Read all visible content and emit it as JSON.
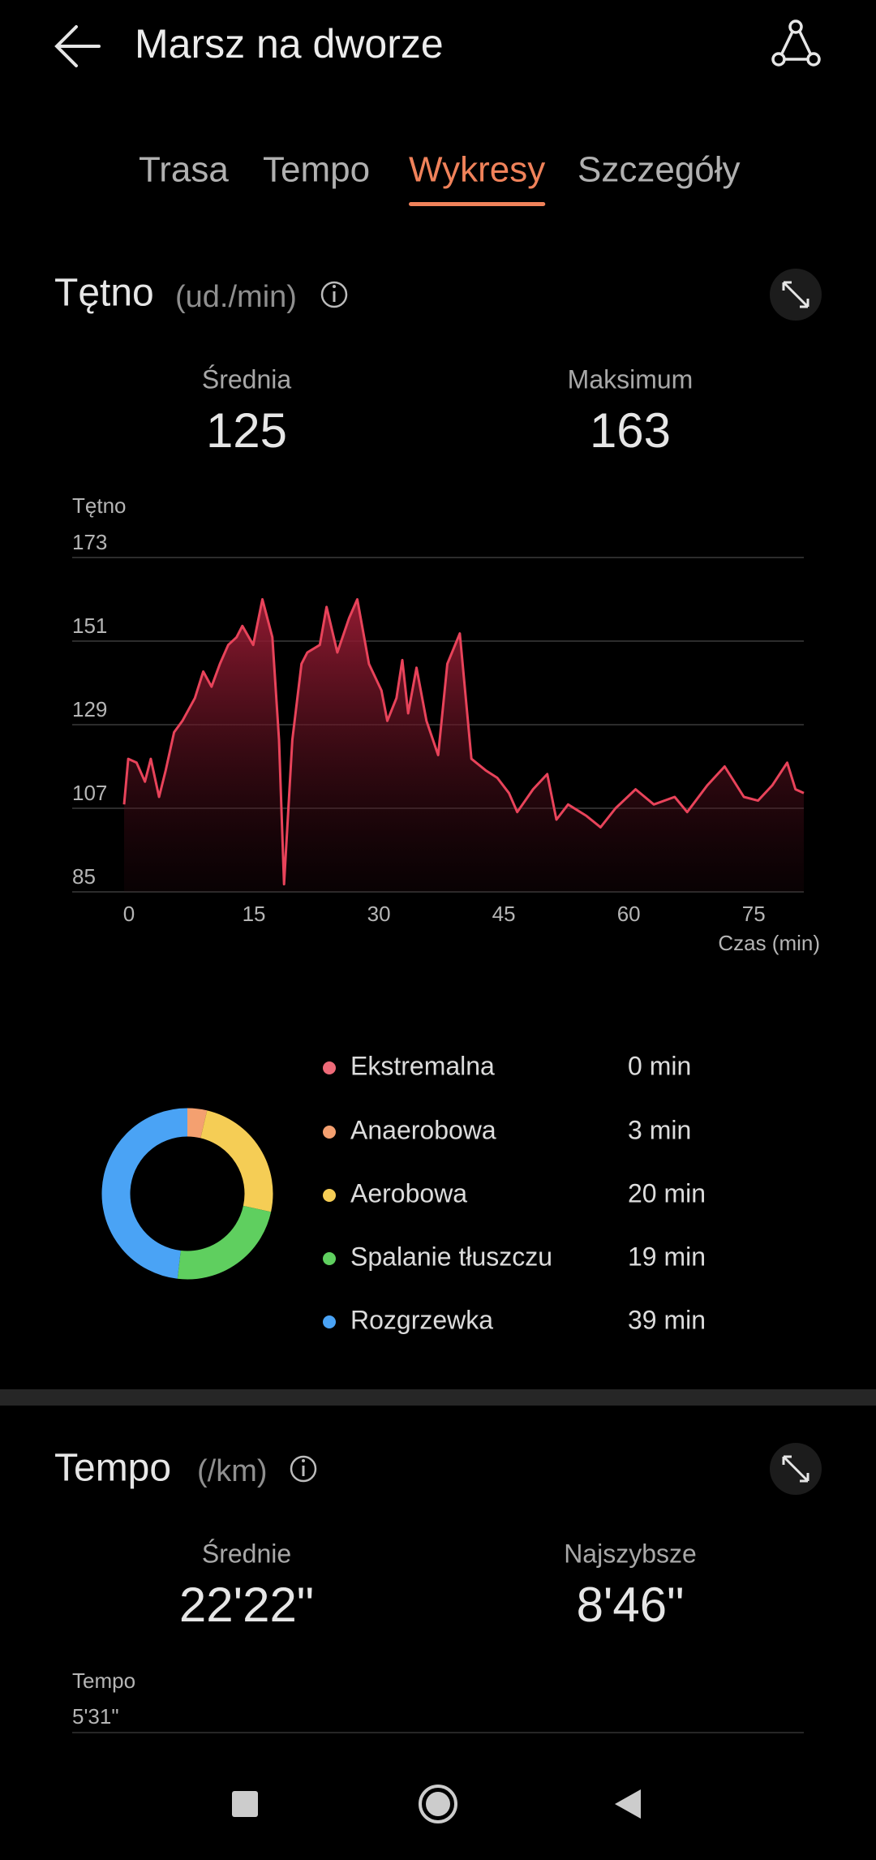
{
  "header": {
    "title": "Marsz na dworze"
  },
  "tabs": [
    "Trasa",
    "Tempo",
    "Wykresy",
    "Szczegóły"
  ],
  "active_tab": 2,
  "heart": {
    "title": "Tętno",
    "unit": "(ud./min)",
    "stats": [
      {
        "label": "Średnia",
        "value": 125
      },
      {
        "label": "Maksimum",
        "value": 163
      }
    ]
  },
  "chart_data": {
    "type": "area",
    "y_label": "Tętno",
    "x_label": "Czas (min)",
    "color": "#e8435a",
    "x": [
      0,
      0.5,
      1.5,
      2.5,
      3.2,
      4.2,
      5,
      6,
      7,
      8.5,
      9.5,
      10.5,
      11.5,
      12.5,
      13.5,
      14.2,
      15.5,
      16.6,
      17.8,
      18.6,
      19.2,
      20.2,
      21.3,
      22,
      23.5,
      24.3,
      25.6,
      27,
      28,
      29.4,
      30.9,
      31.6,
      32.7,
      33.4,
      34.1,
      35.1,
      36.3,
      37.7,
      38.8,
      40.3,
      41.7,
      43.4,
      44.8,
      46.2,
      47.2,
      49.1,
      50.8,
      51.9,
      53.3,
      55.5,
      57.2,
      59,
      61.4,
      63.6,
      66.1,
      67.6,
      70,
      72.1,
      74.4,
      76.1,
      77.8,
      79.6,
      80.6,
      81.6
    ],
    "values": [
      108,
      120,
      119,
      114,
      120,
      110,
      117,
      127,
      130,
      136,
      143,
      139,
      145,
      150,
      152,
      155,
      150,
      162,
      152,
      125,
      87,
      125,
      145,
      148,
      150,
      160,
      148,
      157,
      162,
      145,
      138,
      130,
      136,
      146,
      132,
      144,
      130,
      121,
      145,
      153,
      120,
      117,
      115,
      111,
      106,
      112,
      116,
      104,
      108,
      105,
      102,
      107,
      112,
      108,
      110,
      106,
      113,
      118,
      110,
      109,
      113,
      119,
      112,
      111
    ],
    "xlim": [
      0,
      81.6
    ],
    "ylim": [
      85,
      173
    ],
    "xticks": [
      0,
      15,
      30,
      45,
      60,
      75
    ],
    "yticks": [
      85,
      107,
      129,
      151,
      173
    ],
    "grid": true
  },
  "zones": [
    {
      "name": "Ekstremalna",
      "color": "#ee6a78",
      "minutes": 0,
      "label": "0 min"
    },
    {
      "name": "Anaerobowa",
      "color": "#f4a070",
      "minutes": 3,
      "label": "3 min"
    },
    {
      "name": "Aerobowa",
      "color": "#f5cd55",
      "minutes": 20,
      "label": "20 min"
    },
    {
      "name": "Spalanie tłuszczu",
      "color": "#5fcf5f",
      "minutes": 19,
      "label": "19 min"
    },
    {
      "name": "Rozgrzewka",
      "color": "#4aa3f5",
      "minutes": 39,
      "label": "39 min"
    }
  ],
  "pace": {
    "title": "Tempo",
    "unit": "(/km)",
    "stats": [
      {
        "label": "Średnie",
        "value": "22'22\""
      },
      {
        "label": "Najszybsze",
        "value": "8'46\""
      }
    ],
    "axis_label": "Tempo",
    "tick_label": "5'31\""
  }
}
